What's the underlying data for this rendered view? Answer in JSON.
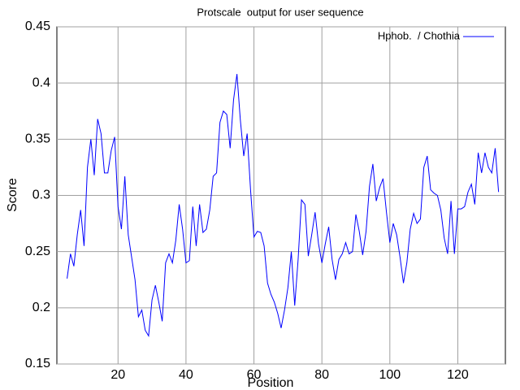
{
  "chart_data": {
    "type": "line",
    "title": "Protscale  output for user sequence",
    "x_label": "Position",
    "y_label": "Score",
    "xlim": [
      2,
      134
    ],
    "ylim": [
      0.15,
      0.45
    ],
    "xticks": [
      20,
      40,
      60,
      80,
      100,
      120
    ],
    "yticks": [
      0.15,
      0.2,
      0.25,
      0.3,
      0.35,
      0.4,
      0.45
    ],
    "grid": true,
    "legend": "top-right",
    "x": [
      5,
      6,
      7,
      8,
      9,
      10,
      11,
      12,
      13,
      14,
      15,
      16,
      17,
      18,
      19,
      20,
      21,
      22,
      23,
      24,
      25,
      26,
      27,
      28,
      29,
      30,
      31,
      32,
      33,
      34,
      35,
      36,
      37,
      38,
      39,
      40,
      41,
      42,
      43,
      44,
      45,
      46,
      47,
      48,
      49,
      50,
      51,
      52,
      53,
      54,
      55,
      56,
      57,
      58,
      59,
      60,
      61,
      62,
      63,
      64,
      65,
      66,
      67,
      68,
      69,
      70,
      71,
      72,
      73,
      74,
      75,
      76,
      77,
      78,
      79,
      80,
      81,
      82,
      83,
      84,
      85,
      86,
      87,
      88,
      89,
      90,
      91,
      92,
      93,
      94,
      95,
      96,
      97,
      98,
      99,
      100,
      101,
      102,
      103,
      104,
      105,
      106,
      107,
      108,
      109,
      110,
      111,
      112,
      113,
      114,
      115,
      116,
      117,
      118,
      119,
      120,
      121,
      122,
      123,
      124,
      125,
      126,
      127,
      128,
      129,
      130,
      131,
      132
    ],
    "series": [
      {
        "name": "Hphob.  / Chothia",
        "color": "#0000ff",
        "values": [
          0.226,
          0.248,
          0.237,
          0.265,
          0.287,
          0.255,
          0.325,
          0.35,
          0.318,
          0.368,
          0.355,
          0.32,
          0.32,
          0.34,
          0.352,
          0.29,
          0.27,
          0.317,
          0.265,
          0.245,
          0.225,
          0.192,
          0.198,
          0.18,
          0.175,
          0.207,
          0.22,
          0.205,
          0.188,
          0.24,
          0.248,
          0.24,
          0.26,
          0.292,
          0.27,
          0.24,
          0.242,
          0.29,
          0.255,
          0.292,
          0.267,
          0.27,
          0.287,
          0.317,
          0.32,
          0.365,
          0.375,
          0.372,
          0.342,
          0.385,
          0.408,
          0.367,
          0.335,
          0.355,
          0.305,
          0.263,
          0.268,
          0.267,
          0.255,
          0.222,
          0.212,
          0.205,
          0.195,
          0.182,
          0.198,
          0.218,
          0.25,
          0.202,
          0.243,
          0.296,
          0.292,
          0.246,
          0.265,
          0.285,
          0.257,
          0.24,
          0.257,
          0.272,
          0.243,
          0.225,
          0.243,
          0.248,
          0.258,
          0.248,
          0.25,
          0.283,
          0.268,
          0.247,
          0.268,
          0.308,
          0.328,
          0.295,
          0.307,
          0.315,
          0.285,
          0.258,
          0.275,
          0.265,
          0.245,
          0.222,
          0.24,
          0.27,
          0.284,
          0.275,
          0.279,
          0.325,
          0.335,
          0.305,
          0.302,
          0.3,
          0.287,
          0.262,
          0.248,
          0.295,
          0.248,
          0.288,
          0.288,
          0.29,
          0.303,
          0.31,
          0.292,
          0.338,
          0.32,
          0.338,
          0.325,
          0.32,
          0.342,
          0.303
        ]
      }
    ]
  }
}
